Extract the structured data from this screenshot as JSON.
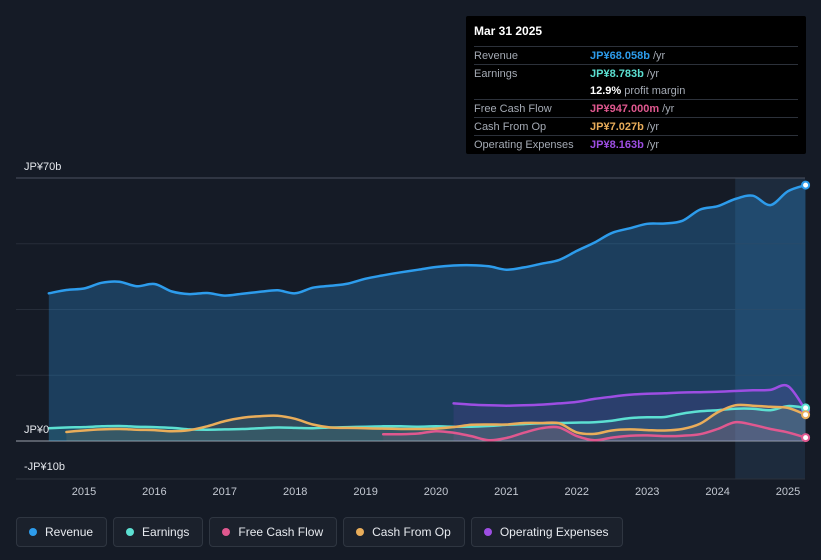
{
  "colors": {
    "revenue": "#2d9cec",
    "earnings": "#5ce0d2",
    "free_cash_flow": "#e0588f",
    "cash_from_op": "#e9ad5a",
    "operating_expenses": "#9d4ee3"
  },
  "tooltip": {
    "date": "Mar 31 2025",
    "rows": [
      {
        "label": "Revenue",
        "value": "JP¥68.058b",
        "unit": "/yr",
        "color": "#2d9cec"
      },
      {
        "label": "Earnings",
        "value": "JP¥8.783b",
        "unit": "/yr",
        "color": "#5ce0d2"
      },
      {
        "label": "",
        "value": "12.9%",
        "unit": "profit margin",
        "color": "#ffffff"
      },
      {
        "label": "Free Cash Flow",
        "value": "JP¥947.000m",
        "unit": "/yr",
        "color": "#e0588f"
      },
      {
        "label": "Cash From Op",
        "value": "JP¥7.027b",
        "unit": "/yr",
        "color": "#e9ad5a"
      },
      {
        "label": "Operating Expenses",
        "value": "JP¥8.163b",
        "unit": "/yr",
        "color": "#9d4ee3"
      }
    ]
  },
  "legend": [
    {
      "label": "Revenue",
      "color": "#2d9cec"
    },
    {
      "label": "Earnings",
      "color": "#5ce0d2"
    },
    {
      "label": "Free Cash Flow",
      "color": "#e0588f"
    },
    {
      "label": "Cash From Op",
      "color": "#e9ad5a"
    },
    {
      "label": "Operating Expenses",
      "color": "#9d4ee3"
    }
  ],
  "chart_data": {
    "type": "area",
    "title": "",
    "xlabel": "",
    "ylabel": "",
    "y_tick_labels": [
      {
        "value": 70,
        "label": "JP¥70b"
      },
      {
        "value": 0,
        "label": "JP¥0"
      },
      {
        "value": -10,
        "label": "-JP¥10b"
      }
    ],
    "ylim": [
      -10,
      70
    ],
    "xlim": [
      2014.5,
      2025.25
    ],
    "x_ticks": [
      2015,
      2016,
      2017,
      2018,
      2019,
      2020,
      2021,
      2022,
      2023,
      2024,
      2025
    ],
    "x_tick_labels": [
      "2015",
      "2016",
      "2017",
      "2018",
      "2019",
      "2020",
      "2021",
      "2022",
      "2023",
      "2024",
      "2025"
    ],
    "highlight_from": 2024.25,
    "series": [
      {
        "name": "Revenue",
        "key": "revenue",
        "fill": true,
        "x": [
          2014.5,
          2014.75,
          2015.0,
          2015.25,
          2015.5,
          2015.75,
          2016.0,
          2016.25,
          2016.5,
          2016.75,
          2017.0,
          2017.25,
          2017.5,
          2017.75,
          2018.0,
          2018.25,
          2018.5,
          2018.75,
          2019.0,
          2019.25,
          2019.5,
          2019.75,
          2020.0,
          2020.25,
          2020.5,
          2020.75,
          2021.0,
          2021.25,
          2021.5,
          2021.75,
          2022.0,
          2022.25,
          2022.5,
          2022.75,
          2023.0,
          2023.25,
          2023.5,
          2023.75,
          2024.0,
          2024.25,
          2024.5,
          2024.75,
          2025.0,
          2025.25
        ],
        "values": [
          39.3,
          40.2,
          40.6,
          42.1,
          42.4,
          41.2,
          41.8,
          39.8,
          39.1,
          39.4,
          38.7,
          39.2,
          39.7,
          40.1,
          39.3,
          40.8,
          41.3,
          41.9,
          43.2,
          44.1,
          44.9,
          45.6,
          46.3,
          46.7,
          46.8,
          46.5,
          45.6,
          46.2,
          47.2,
          48.2,
          50.6,
          52.8,
          55.4,
          56.6,
          57.8,
          57.9,
          58.6,
          61.6,
          62.5,
          64.4,
          65.3,
          62.8,
          66.5,
          68.1
        ]
      },
      {
        "name": "Earnings",
        "key": "earnings",
        "fill": false,
        "x": [
          2014.5,
          2014.75,
          2015.0,
          2015.25,
          2015.5,
          2015.75,
          2016.0,
          2016.25,
          2016.5,
          2016.75,
          2017.0,
          2017.25,
          2017.5,
          2017.75,
          2018.0,
          2018.25,
          2018.5,
          2018.75,
          2019.0,
          2019.25,
          2019.5,
          2019.75,
          2020.0,
          2020.25,
          2020.5,
          2020.75,
          2021.0,
          2021.25,
          2021.5,
          2021.75,
          2022.0,
          2022.25,
          2022.5,
          2022.75,
          2023.0,
          2023.25,
          2023.5,
          2023.75,
          2024.0,
          2024.25,
          2024.5,
          2024.75,
          2025.0,
          2025.25
        ],
        "values": [
          3.4,
          3.6,
          3.7,
          3.9,
          4.0,
          3.8,
          3.7,
          3.5,
          3.1,
          3.0,
          3.1,
          3.2,
          3.4,
          3.6,
          3.5,
          3.4,
          3.6,
          3.7,
          3.8,
          3.9,
          3.9,
          3.8,
          3.9,
          3.8,
          3.8,
          4.0,
          4.3,
          4.5,
          4.7,
          4.8,
          4.9,
          5.0,
          5.4,
          6.1,
          6.3,
          6.4,
          7.3,
          7.9,
          8.2,
          8.6,
          8.6,
          8.2,
          9.3,
          8.8
        ]
      },
      {
        "name": "Free Cash Flow",
        "key": "free_cash_flow",
        "fill": false,
        "x": [
          2019.25,
          2019.5,
          2019.75,
          2020.0,
          2020.25,
          2020.5,
          2020.75,
          2021.0,
          2021.25,
          2021.5,
          2021.75,
          2022.0,
          2022.25,
          2022.5,
          2022.75,
          2023.0,
          2023.25,
          2023.5,
          2023.75,
          2024.0,
          2024.25,
          2024.5,
          2024.75,
          2025.0,
          2025.25
        ],
        "values": [
          1.8,
          1.8,
          2.0,
          2.6,
          2.2,
          1.3,
          0.2,
          0.8,
          2.2,
          3.4,
          3.6,
          1.3,
          0.2,
          0.9,
          1.4,
          1.5,
          1.3,
          1.4,
          1.8,
          3.2,
          5.0,
          4.3,
          3.2,
          2.3,
          0.9
        ]
      },
      {
        "name": "Cash From Op",
        "key": "cash_from_op",
        "fill": false,
        "x": [
          2014.75,
          2015.0,
          2015.25,
          2015.5,
          2015.75,
          2016.0,
          2016.25,
          2016.5,
          2016.75,
          2017.0,
          2017.25,
          2017.5,
          2017.75,
          2018.0,
          2018.25,
          2018.5,
          2018.75,
          2019.0,
          2019.25,
          2019.5,
          2019.75,
          2020.0,
          2020.25,
          2020.5,
          2020.75,
          2021.0,
          2021.25,
          2021.5,
          2021.75,
          2022.0,
          2022.25,
          2022.5,
          2022.75,
          2023.0,
          2023.25,
          2023.5,
          2023.75,
          2024.0,
          2024.25,
          2024.5,
          2024.75,
          2025.0,
          2025.25
        ],
        "values": [
          2.4,
          2.8,
          3.1,
          3.2,
          3.0,
          2.9,
          2.6,
          2.9,
          3.9,
          5.3,
          6.2,
          6.6,
          6.7,
          5.9,
          4.4,
          3.6,
          3.5,
          3.4,
          3.3,
          3.2,
          3.2,
          3.3,
          3.7,
          4.3,
          4.4,
          4.4,
          4.8,
          4.8,
          4.7,
          2.3,
          1.9,
          2.8,
          3.1,
          2.9,
          2.8,
          3.2,
          4.6,
          7.6,
          9.5,
          9.4,
          9.1,
          8.8,
          7.0
        ]
      },
      {
        "name": "Operating Expenses",
        "key": "operating_expenses",
        "fill": false,
        "x": [
          2020.25,
          2020.5,
          2020.75,
          2021.0,
          2021.25,
          2021.5,
          2021.75,
          2022.0,
          2022.25,
          2022.5,
          2022.75,
          2023.0,
          2023.25,
          2023.5,
          2023.75,
          2024.0,
          2024.25,
          2024.5,
          2024.75,
          2025.0,
          2025.25
        ],
        "values": [
          10.0,
          9.7,
          9.5,
          9.4,
          9.5,
          9.7,
          10.0,
          10.4,
          11.2,
          11.8,
          12.3,
          12.6,
          12.7,
          12.9,
          13.0,
          13.1,
          13.3,
          13.5,
          13.6,
          14.6,
          8.2
        ]
      }
    ]
  }
}
